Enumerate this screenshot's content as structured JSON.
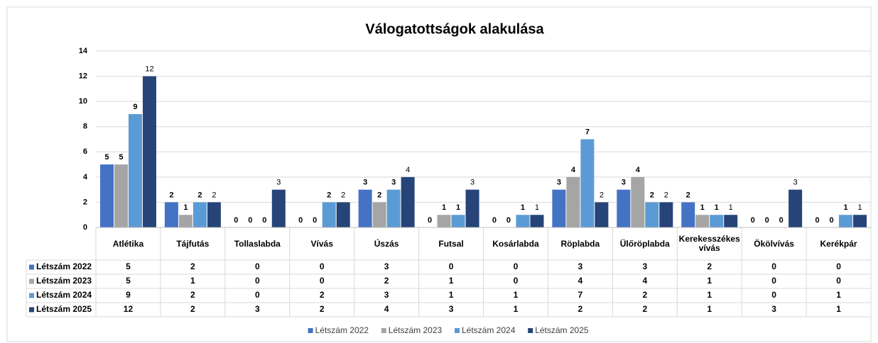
{
  "chart_data": {
    "type": "bar",
    "title": "Válogatottságok alakulása",
    "categories": [
      "Atlétika",
      "Tájfutás",
      "Tollaslabda",
      "Vívás",
      "Úszás",
      "Futsal",
      "Kosárlabda",
      "Röplabda",
      "Ülőröplabda",
      "Kerekesszékes vívás",
      "Ökölvívás",
      "Kerékpár"
    ],
    "series": [
      {
        "name": "Létszám 2022",
        "color": "#4472c4",
        "values": [
          5,
          2,
          0,
          0,
          3,
          0,
          0,
          3,
          3,
          2,
          0,
          0
        ]
      },
      {
        "name": "Létszám 2023",
        "color": "#a5a5a5",
        "values": [
          5,
          1,
          0,
          0,
          2,
          1,
          0,
          4,
          4,
          1,
          0,
          0
        ]
      },
      {
        "name": "Létszám 2024",
        "color": "#5b9bd5",
        "values": [
          9,
          2,
          0,
          2,
          3,
          1,
          1,
          7,
          2,
          1,
          0,
          1
        ]
      },
      {
        "name": "Létszám 2025",
        "color": "#264478",
        "values": [
          12,
          2,
          3,
          2,
          4,
          3,
          1,
          2,
          2,
          1,
          3,
          1
        ]
      }
    ],
    "ylim": [
      0,
      14
    ],
    "yticks": [
      0,
      2,
      4,
      6,
      8,
      10,
      12,
      14
    ],
    "grid": true,
    "legend": "bottom",
    "data_table": true
  }
}
